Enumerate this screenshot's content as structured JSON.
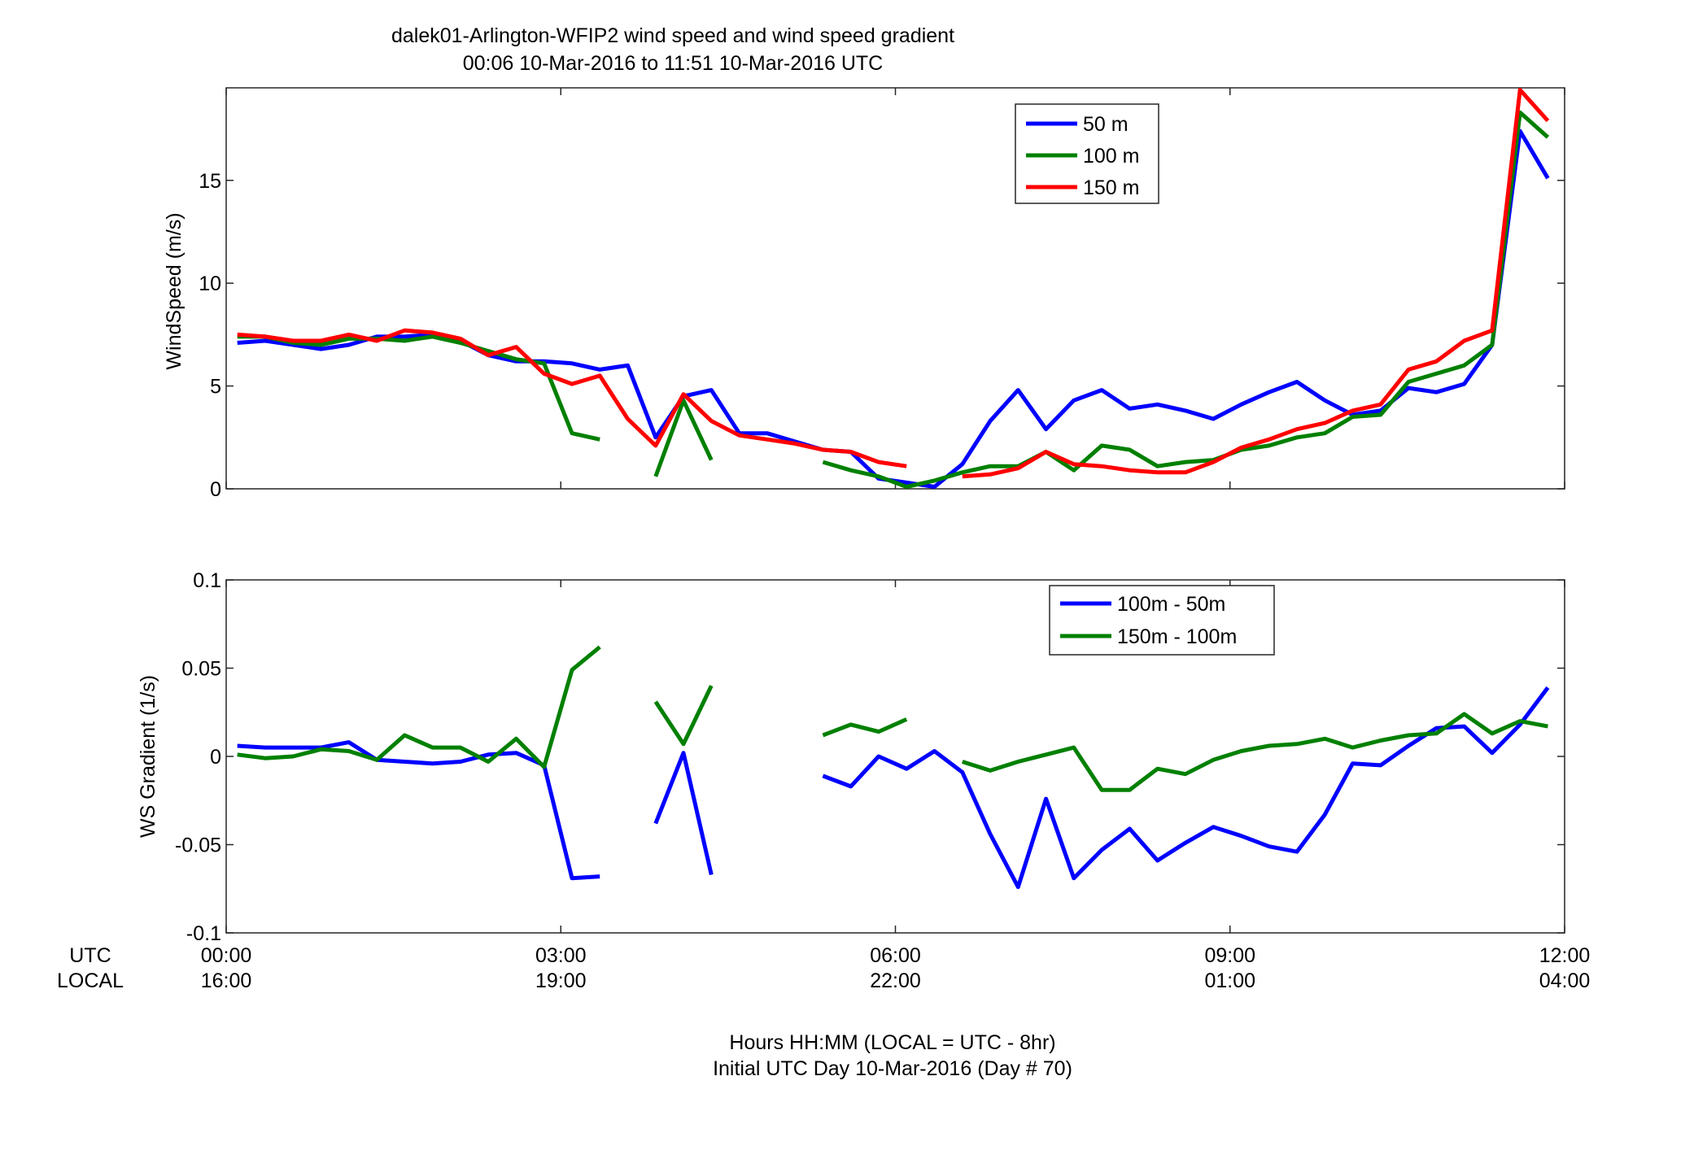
{
  "figure": {
    "title_line1": "dalek01-Arlington-WFIP2  wind speed and wind speed gradient",
    "title_line2": "00:06 10-Mar-2016 to 11:51 10-Mar-2016  UTC",
    "xlabel_line1": "Hours HH:MM  (LOCAL = UTC - 8hr)",
    "xlabel_line2": "Initial UTC Day 10-Mar-2016 (Day # 70)",
    "utc_row_label": "UTC",
    "local_row_label": "LOCAL",
    "x_ticks_utc": [
      "00:00",
      "03:00",
      "06:00",
      "09:00",
      "12:00"
    ],
    "x_ticks_local": [
      "16:00",
      "19:00",
      "22:00",
      "01:00",
      "04:00"
    ]
  },
  "chart_data": [
    {
      "type": "line",
      "ylabel": "WindSpeed (m/s)",
      "xlim": [
        0,
        12
      ],
      "ylim": [
        0,
        19.5
      ],
      "yticks": [
        0,
        5,
        10,
        15
      ],
      "ytick_labels": [
        "0",
        "5",
        "10",
        "15"
      ],
      "legend_position": "top-right",
      "x_hours": [
        0.1,
        0.35,
        0.6,
        0.85,
        1.1,
        1.35,
        1.6,
        1.85,
        2.1,
        2.35,
        2.6,
        2.85,
        3.1,
        3.35,
        3.6,
        3.85,
        4.1,
        4.35,
        4.6,
        4.85,
        5.1,
        5.35,
        5.6,
        5.85,
        6.1,
        6.35,
        6.6,
        6.85,
        7.1,
        7.35,
        7.6,
        7.85,
        8.1,
        8.35,
        8.6,
        8.85,
        9.1,
        9.35,
        9.6,
        9.85,
        10.1,
        10.35,
        10.6,
        10.85,
        11.1,
        11.35,
        11.6,
        11.85
      ],
      "series": [
        {
          "name": "50 m",
          "color": "#0000ff",
          "values": [
            7.1,
            7.2,
            7.0,
            6.8,
            7.0,
            7.4,
            7.4,
            7.5,
            7.2,
            6.5,
            6.2,
            6.2,
            6.1,
            5.8,
            6.0,
            2.5,
            4.5,
            4.8,
            2.7,
            2.7,
            2.3,
            1.9,
            1.8,
            0.5,
            0.3,
            0.1,
            1.2,
            3.3,
            4.8,
            2.9,
            4.3,
            4.8,
            3.9,
            4.1,
            3.8,
            3.4,
            4.1,
            4.7,
            5.2,
            4.3,
            3.6,
            3.8,
            4.9,
            4.7,
            5.1,
            7.0,
            17.4,
            15.1
          ]
        },
        {
          "name": "100 m",
          "color": "#008000",
          "values": [
            7.4,
            7.4,
            7.1,
            7.0,
            7.3,
            7.3,
            7.2,
            7.4,
            7.1,
            6.7,
            6.3,
            6.1,
            2.7,
            2.4,
            null,
            0.6,
            4.3,
            1.4,
            null,
            null,
            null,
            1.3,
            0.9,
            0.6,
            0.1,
            0.4,
            0.8,
            1.1,
            1.1,
            1.8,
            0.9,
            2.1,
            1.9,
            1.1,
            1.3,
            1.4,
            1.9,
            2.1,
            2.5,
            2.7,
            3.5,
            3.6,
            5.2,
            5.6,
            6.0,
            7.0,
            18.3,
            17.1
          ]
        },
        {
          "name": "150 m",
          "color": "#ff0000",
          "values": [
            7.5,
            7.4,
            7.2,
            7.2,
            7.5,
            7.2,
            7.7,
            7.6,
            7.3,
            6.5,
            6.9,
            5.6,
            5.1,
            5.5,
            3.4,
            2.1,
            4.6,
            3.3,
            2.6,
            2.4,
            2.2,
            1.9,
            1.8,
            1.3,
            1.1,
            null,
            0.6,
            0.7,
            1.0,
            1.8,
            1.2,
            1.1,
            0.9,
            0.8,
            0.8,
            1.3,
            2.0,
            2.4,
            2.9,
            3.2,
            3.8,
            4.1,
            5.8,
            6.2,
            7.2,
            7.7,
            19.4,
            17.9
          ]
        }
      ]
    },
    {
      "type": "line",
      "ylabel": "WS Gradient (1/s)",
      "xlim": [
        0,
        12
      ],
      "ylim": [
        -0.1,
        0.1
      ],
      "yticks": [
        -0.1,
        -0.05,
        0,
        0.05,
        0.1
      ],
      "ytick_labels": [
        "-0.1",
        "-0.05",
        "0",
        "0.05",
        "0.1"
      ],
      "legend_position": "top-right",
      "x_hours": [
        0.1,
        0.35,
        0.6,
        0.85,
        1.1,
        1.35,
        1.6,
        1.85,
        2.1,
        2.35,
        2.6,
        2.85,
        3.1,
        3.35,
        3.6,
        3.85,
        4.1,
        4.35,
        4.6,
        4.85,
        5.1,
        5.35,
        5.6,
        5.85,
        6.1,
        6.35,
        6.6,
        6.85,
        7.1,
        7.35,
        7.6,
        7.85,
        8.1,
        8.35,
        8.6,
        8.85,
        9.1,
        9.35,
        9.6,
        9.85,
        10.1,
        10.35,
        10.6,
        10.85,
        11.1,
        11.35,
        11.6,
        11.85
      ],
      "series": [
        {
          "name": "100m - 50m",
          "color": "#0000ff",
          "values": [
            0.006,
            0.005,
            0.005,
            0.005,
            0.008,
            -0.002,
            -0.003,
            -0.004,
            -0.003,
            0.001,
            0.002,
            -0.005,
            -0.069,
            -0.068,
            null,
            -0.038,
            0.002,
            -0.067,
            null,
            null,
            null,
            -0.011,
            -0.017,
            0.0,
            -0.007,
            0.003,
            -0.009,
            -0.044,
            -0.074,
            -0.024,
            -0.069,
            -0.053,
            -0.041,
            -0.059,
            -0.049,
            -0.04,
            -0.045,
            -0.051,
            -0.054,
            -0.033,
            -0.004,
            -0.005,
            0.006,
            0.016,
            0.017,
            0.002,
            0.018,
            0.039
          ]
        },
        {
          "name": "150m - 100m",
          "color": "#008000",
          "values": [
            0.001,
            -0.001,
            0.0,
            0.004,
            0.003,
            -0.002,
            0.012,
            0.005,
            0.005,
            -0.003,
            0.01,
            -0.006,
            0.049,
            0.062,
            null,
            0.031,
            0.007,
            0.04,
            null,
            null,
            null,
            0.012,
            0.018,
            0.014,
            0.021,
            null,
            -0.003,
            -0.008,
            -0.003,
            0.001,
            0.005,
            -0.019,
            -0.019,
            -0.007,
            -0.01,
            -0.002,
            0.003,
            0.006,
            0.007,
            0.01,
            0.005,
            0.009,
            0.012,
            0.013,
            0.024,
            0.013,
            0.02,
            0.017
          ]
        }
      ]
    }
  ]
}
